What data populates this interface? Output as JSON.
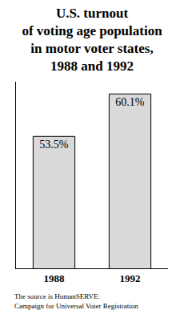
{
  "chart_data": {
    "type": "bar",
    "title": "U.S. turnout\nof voting age population\nin motor voter states,\n1988 and 1992",
    "categories": [
      "1988",
      "1992"
    ],
    "values": [
      53.5,
      60.1
    ],
    "value_labels": [
      "53.5%",
      "60.1%"
    ],
    "data_labels": true,
    "color": "#d9d9d9",
    "ylim": [
      33,
      62
    ],
    "tick_labels": "x",
    "grid": false,
    "source": "The source is HumanSERVE:\nCampaign for Universal Voter Registration"
  }
}
